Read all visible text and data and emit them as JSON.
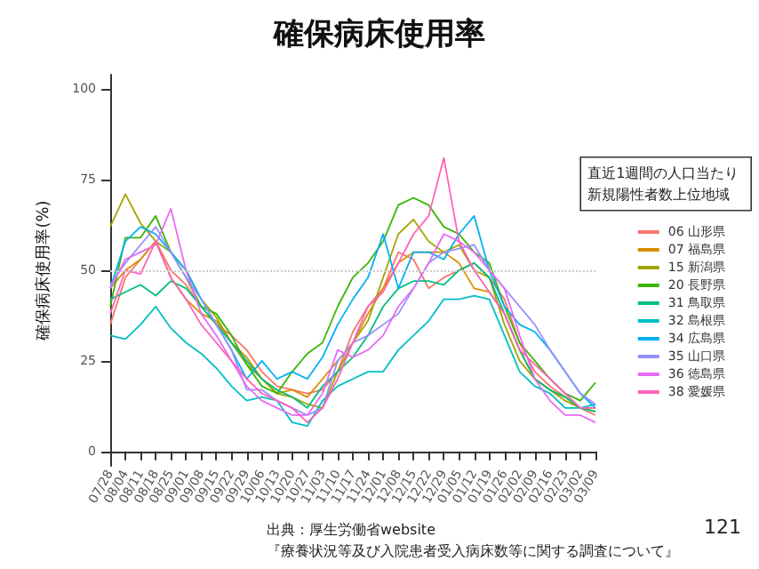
{
  "chart_data": {
    "type": "line",
    "title": "確保病床使用率",
    "ylabel": "確保病床使用率(%)",
    "legend_title": "直近1週間の人口当たり新規陽性者数上位地域",
    "categories": [
      "07/28",
      "08/04",
      "08/11",
      "08/18",
      "08/25",
      "09/01",
      "09/08",
      "09/15",
      "09/22",
      "09/29",
      "10/06",
      "10/13",
      "10/20",
      "10/27",
      "11/03",
      "11/10",
      "11/17",
      "11/24",
      "12/01",
      "12/08",
      "12/15",
      "12/22",
      "12/29",
      "01/05",
      "01/12",
      "01/19",
      "01/26",
      "02/02",
      "02/09",
      "02/16",
      "02/23",
      "03/02",
      "03/09"
    ],
    "series": [
      {
        "name": "06 山形県",
        "color": "#f8766d",
        "values": [
          35,
          48,
          53,
          58,
          50,
          46,
          40,
          35,
          32,
          28,
          22,
          18,
          17,
          16,
          17,
          22,
          33,
          40,
          45,
          55,
          53,
          45,
          48,
          50,
          52,
          48,
          42,
          30,
          22,
          18,
          15,
          12,
          10
        ]
      },
      {
        "name": "07 福島県",
        "color": "#d89000",
        "values": [
          45,
          50,
          53,
          58,
          48,
          42,
          38,
          36,
          30,
          26,
          20,
          16,
          17,
          15,
          20,
          25,
          30,
          38,
          45,
          52,
          55,
          55,
          55,
          52,
          45,
          44,
          38,
          28,
          20,
          17,
          15,
          12,
          12
        ]
      },
      {
        "name": "15 新潟県",
        "color": "#a3a500",
        "values": [
          62,
          71,
          63,
          58,
          55,
          50,
          42,
          37,
          30,
          24,
          20,
          16,
          15,
          13,
          12,
          22,
          30,
          36,
          48,
          60,
          64,
          58,
          55,
          57,
          50,
          48,
          35,
          25,
          20,
          17,
          14,
          12,
          11
        ]
      },
      {
        "name": "20 長野県",
        "color": "#39b600",
        "values": [
          40,
          59,
          59,
          65,
          55,
          48,
          40,
          38,
          32,
          24,
          18,
          16,
          22,
          27,
          30,
          40,
          48,
          52,
          58,
          68,
          70,
          68,
          62,
          60,
          55,
          52,
          40,
          30,
          25,
          20,
          16,
          14,
          19
        ]
      },
      {
        "name": "31 鳥取県",
        "color": "#00bf7d",
        "values": [
          42,
          44,
          46,
          43,
          47,
          45,
          40,
          35,
          30,
          25,
          20,
          17,
          15,
          12,
          18,
          22,
          26,
          32,
          40,
          45,
          47,
          47,
          46,
          50,
          52,
          48,
          38,
          28,
          20,
          17,
          15,
          12,
          11
        ]
      },
      {
        "name": "32 島根県",
        "color": "#00bfc4",
        "values": [
          32,
          31,
          35,
          40,
          34,
          30,
          27,
          23,
          18,
          14,
          15,
          14,
          8,
          7,
          14,
          18,
          20,
          22,
          22,
          28,
          32,
          36,
          42,
          42,
          43,
          42,
          32,
          22,
          18,
          16,
          12,
          12,
          13
        ]
      },
      {
        "name": "34 広島県",
        "color": "#00b0f6",
        "values": [
          45,
          58,
          62,
          60,
          55,
          50,
          42,
          35,
          28,
          20,
          25,
          20,
          22,
          20,
          26,
          35,
          42,
          48,
          60,
          45,
          55,
          55,
          53,
          60,
          65,
          50,
          40,
          35,
          33,
          28,
          22,
          16,
          12
        ]
      },
      {
        "name": "35 山口県",
        "color": "#9590ff",
        "values": [
          46,
          52,
          57,
          62,
          55,
          48,
          42,
          35,
          28,
          17,
          17,
          14,
          12,
          10,
          12,
          25,
          30,
          32,
          35,
          38,
          45,
          52,
          55,
          56,
          57,
          50,
          45,
          40,
          35,
          28,
          22,
          16,
          13
        ]
      },
      {
        "name": "36 徳島県",
        "color": "#e76bf3",
        "values": [
          45,
          53,
          55,
          57,
          67,
          50,
          38,
          32,
          25,
          18,
          14,
          12,
          10,
          10,
          16,
          28,
          26,
          28,
          32,
          40,
          45,
          52,
          60,
          58,
          55,
          50,
          45,
          32,
          20,
          14,
          10,
          10,
          8
        ]
      },
      {
        "name": "38 愛媛県",
        "color": "#ff62bc",
        "values": [
          38,
          50,
          49,
          58,
          48,
          42,
          35,
          30,
          25,
          20,
          16,
          14,
          12,
          8,
          12,
          20,
          30,
          40,
          44,
          52,
          60,
          65,
          81,
          58,
          50,
          44,
          38,
          28,
          24,
          20,
          16,
          12,
          12
        ]
      }
    ],
    "ylim": [
      -4,
      104
    ],
    "yticks": [
      0,
      25,
      50,
      75,
      100
    ],
    "grid": false,
    "legend": "right",
    "marker": "none",
    "line_style": "solid",
    "ref_lines": [
      {
        "axis": "y",
        "value": 50,
        "color": "#cccccc",
        "line_style": "dotted"
      }
    ],
    "annotations": [
      "出典：厚生労働省website",
      "『療養状況等及び入院患者受入病床数等に関する調査について』",
      "121"
    ]
  }
}
